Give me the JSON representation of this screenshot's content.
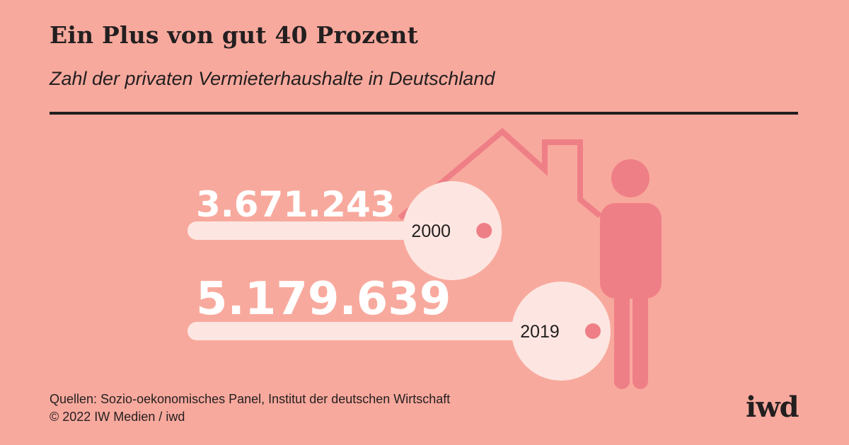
{
  "title": "Ein Plus von gut 40 Prozent",
  "subtitle": "Zahl der privaten Vermieterhaushalte in Deutschland",
  "source_line1": "Quellen: Sozio-oekonomisches Panel, Institut der deutschen Wirtschaft",
  "source_line2": "© 2022 IW Medien / iwd",
  "logo": "iwd",
  "colors": {
    "background": "#f8a99d",
    "key": "#fde6e1",
    "accent": "#ef7f86",
    "text": "#231f20"
  },
  "chart_data": {
    "type": "bar",
    "categories": [
      "2000",
      "2019"
    ],
    "values": [
      3671243,
      5179639
    ],
    "value_labels": [
      "3.671.243",
      "5.179.639"
    ],
    "title": "Ein Plus von gut 40 Prozent",
    "subtitle": "Zahl der privaten Vermieterhaushalte in Deutschland",
    "xlabel": "",
    "ylabel": "",
    "style": "pictogram keys"
  }
}
